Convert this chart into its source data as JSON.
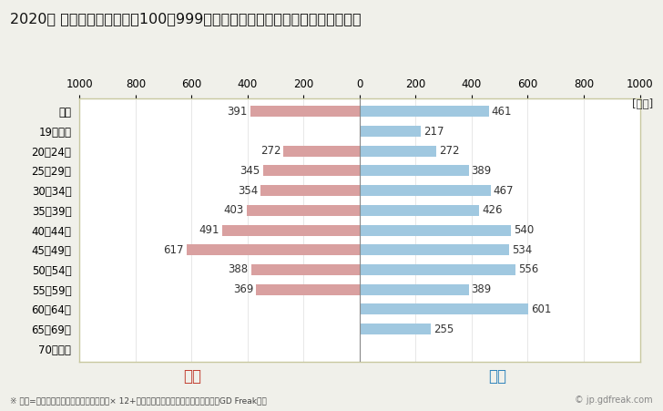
{
  "title": "2020年 民間企業（従業者数100〜999人）フルタイム労働者の男女別平均年収",
  "unit_label": "[万円]",
  "categories": [
    "全体",
    "19歳以下",
    "20〜24歳",
    "25〜29歳",
    "30〜34歳",
    "35〜39歳",
    "40〜44歳",
    "45〜49歳",
    "50〜54歳",
    "55〜59歳",
    "60〜64歳",
    "65〜69歳",
    "70歳以上"
  ],
  "female_values": [
    391,
    0,
    272,
    345,
    354,
    403,
    491,
    617,
    388,
    369,
    0,
    0,
    0
  ],
  "male_values": [
    461,
    217,
    272,
    389,
    467,
    426,
    540,
    534,
    556,
    389,
    601,
    255,
    0
  ],
  "female_color": "#d9a0a0",
  "male_color": "#a0c8e0",
  "female_label": "女性",
  "male_label": "男性",
  "female_label_color": "#c0392b",
  "male_label_color": "#2980b9",
  "xlim": [
    -1000,
    1000
  ],
  "xticks": [
    -1000,
    -800,
    -600,
    -400,
    -200,
    0,
    200,
    400,
    600,
    800,
    1000
  ],
  "xticklabels": [
    "1000",
    "800",
    "600",
    "400",
    "200",
    "0",
    "200",
    "400",
    "600",
    "800",
    "1000"
  ],
  "background_color": "#f0f0ea",
  "plot_bg_color": "#ffffff",
  "border_color": "#c8c8a0",
  "grid_color": "#dddddd",
  "title_fontsize": 11.5,
  "tick_fontsize": 8.5,
  "label_fontsize": 8.5,
  "annotation_note": "※ 年収=「きまって支給する現金給与額」× 12+「年間賞与その他特別給与額」としてGD Freak推計",
  "watermark": "© jp.gdfreak.com",
  "bar_height": 0.55
}
